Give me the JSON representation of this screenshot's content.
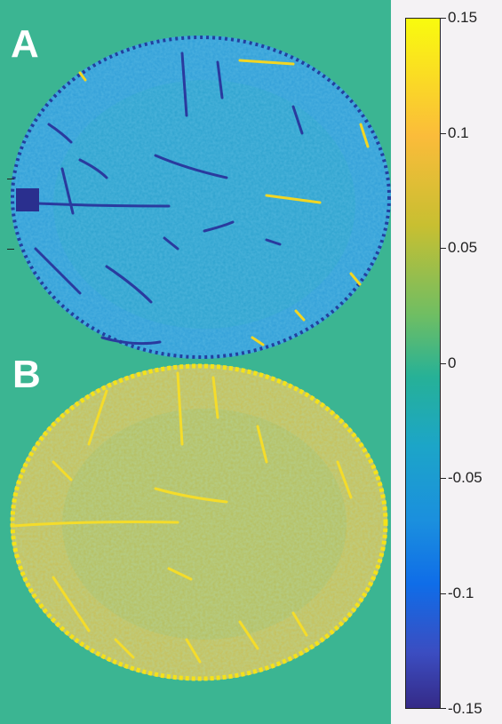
{
  "panels": {
    "a_label": "A",
    "b_label": "B"
  },
  "colorbar": {
    "ticks": [
      "0.15",
      "0.1",
      "0.05",
      "0",
      "-0.05",
      "-0.1",
      "-0.15"
    ],
    "range": [
      -0.15,
      0.15
    ],
    "colormap": "parula"
  },
  "colors": {
    "background": "#3bb592",
    "panel_a_fill": "#2f9ed8",
    "panel_b_fill": "#c8bf55",
    "vessel_negative": "#2a3a9e",
    "vessel_positive": "#f7e21b"
  }
}
